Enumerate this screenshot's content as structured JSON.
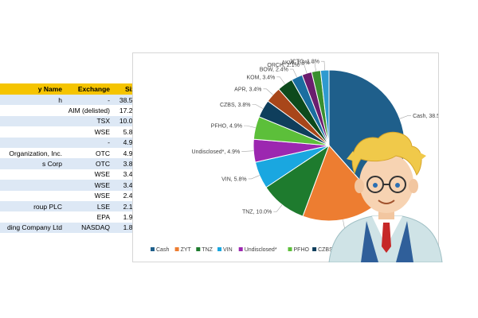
{
  "table": {
    "headers": [
      "y Name",
      "Exchange",
      "Size"
    ],
    "rows": [
      [
        "h",
        "-",
        "38.5%"
      ],
      [
        "",
        "AIM (delisted)",
        "17.2%"
      ],
      [
        "",
        "TSX",
        "10.0%"
      ],
      [
        "",
        "WSE",
        "5.8%"
      ],
      [
        "",
        "-",
        "4.9%"
      ],
      [
        "Organization, Inc.",
        "OTC",
        "4.9%"
      ],
      [
        "s Corp",
        "OTC",
        "3.8%"
      ],
      [
        "",
        "WSE",
        "3.4%"
      ],
      [
        "",
        "WSE",
        "3.4%"
      ],
      [
        "",
        "WSE",
        "2.4%"
      ],
      [
        "roup PLC",
        "LSE",
        "2.1%"
      ],
      [
        "",
        "EPA",
        "1.9%"
      ],
      [
        "ding Company Ltd",
        "NASDAQ",
        "1.8%"
      ]
    ]
  },
  "chart_data": {
    "type": "pie",
    "start_angle_deg": 0,
    "direction": "clockwise",
    "slices": [
      {
        "name": "Cash",
        "value": 38.5,
        "label": "Cash, 38.5%",
        "color": "#1f5f8b"
      },
      {
        "name": "ZYT",
        "value": 17.2,
        "label": "ZYT, 17.2%",
        "color": "#ed7d31"
      },
      {
        "name": "TNZ",
        "value": 10.0,
        "label": "TNZ, 10.0%",
        "color": "#1e7b2e"
      },
      {
        "name": "VIN",
        "value": 5.8,
        "label": "VIN, 5.8%",
        "color": "#1aa7e0"
      },
      {
        "name": "Undisclosed*",
        "value": 4.9,
        "label": "Undisclosed*, 4.9%",
        "color": "#9c27b0"
      },
      {
        "name": "PFHO",
        "value": 4.9,
        "label": "PFHO, 4.9%",
        "color": "#5cbf3a"
      },
      {
        "name": "CZBS",
        "value": 3.8,
        "label": "CZBS, 3.8%",
        "color": "#0f3e5c"
      },
      {
        "name": "APR",
        "value": 3.4,
        "label": "APR, 3.4%",
        "color": "#a8461a"
      },
      {
        "name": "KOM",
        "value": 3.4,
        "label": "KOM, 3.4%",
        "color": "#0d4a1c"
      },
      {
        "name": "BOW",
        "value": 2.4,
        "label": "BOW, 2.4%",
        "color": "#1a6ea0"
      },
      {
        "name": "ORCH",
        "value": 2.1,
        "label": "ORCH, 2.1%",
        "color": "#6b1d6e"
      },
      {
        "name": "AKW",
        "value": 1.9,
        "label": "AKW, 1.9%",
        "color": "#3a8f2f"
      },
      {
        "name": "JCTC",
        "value": 1.8,
        "label": "JCTC, 1.8%",
        "color": "#2e9ad0"
      }
    ],
    "legend": {
      "placement": "bottom",
      "entries": [
        "Cash",
        "ZYT",
        "TNZ",
        "VIN",
        "Undisclosed*",
        "PFHO",
        "CZBS",
        "APR",
        "KOM"
      ]
    }
  }
}
